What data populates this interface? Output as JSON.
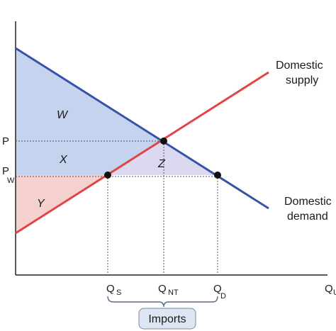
{
  "diagram": {
    "regions": {
      "w": "W",
      "x": "X",
      "y": "Y",
      "z": "Z"
    },
    "price_labels": {
      "p": "P",
      "pw_main": "P",
      "pw_sub": "W"
    },
    "quantity_labels": {
      "qs_main": "Q",
      "qs_sub": "S",
      "qnt_main": "Q",
      "qnt_sub": "NT",
      "qd_main": "Q",
      "qd_sub": "D",
      "axis_main": "Q",
      "axis_sub": "U"
    },
    "curves": {
      "supply_line1": "Domestic",
      "supply_line2": "supply",
      "demand_line1": "Domestic",
      "demand_line2": "demand"
    },
    "imports_label": "Imports",
    "colors": {
      "supply": "#e04545",
      "demand": "#3554a8",
      "region_blue": "#c6d3ee",
      "region_red": "#f6d0cc",
      "region_z": "#dcd8f0",
      "badge": "#dde6f2"
    }
  }
}
